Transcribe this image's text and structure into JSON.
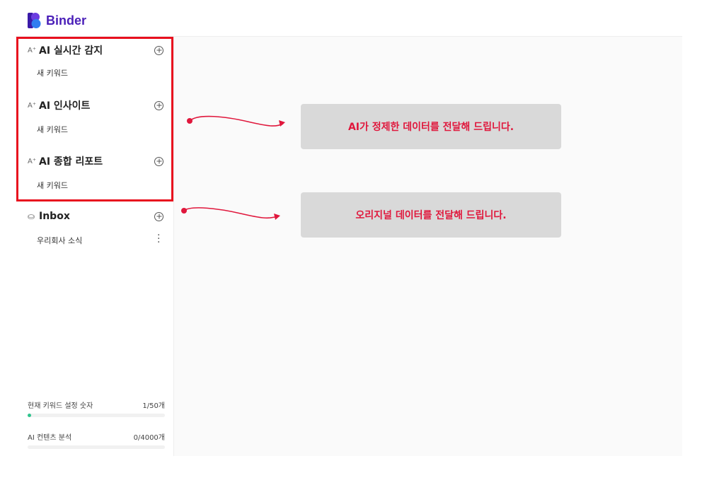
{
  "brand": {
    "name": "Binder",
    "color": "#4a1fb8"
  },
  "sections": [
    {
      "title": "AI 실시간 감지",
      "icon": "ai-sparkle-icon",
      "items": [
        "새 키워드"
      ]
    },
    {
      "title": "AI 인사이트",
      "icon": "ai-sparkle-icon",
      "items": [
        "새 키워드"
      ]
    },
    {
      "title": "AI 종합 리포트",
      "icon": "ai-sparkle-icon",
      "items": [
        "새 키워드"
      ]
    }
  ],
  "inbox": {
    "title": "Inbox",
    "icon": "inbox-icon",
    "items": [
      "우리회사 소식"
    ]
  },
  "stats": [
    {
      "label": "현재 키워드 설정 숫자",
      "value": "1/50개",
      "progress": 0.02
    },
    {
      "label": "AI 컨텐츠 분석",
      "value": "0/4000개",
      "progress": 0
    }
  ],
  "annotations": {
    "ai_data": "AI가 정제한 데이터를 전달해 드립니다.",
    "original_data": "오리지널 데이터를 전달해 드립니다.",
    "color": "#e0173c",
    "highlight_color": "#e8101e"
  }
}
